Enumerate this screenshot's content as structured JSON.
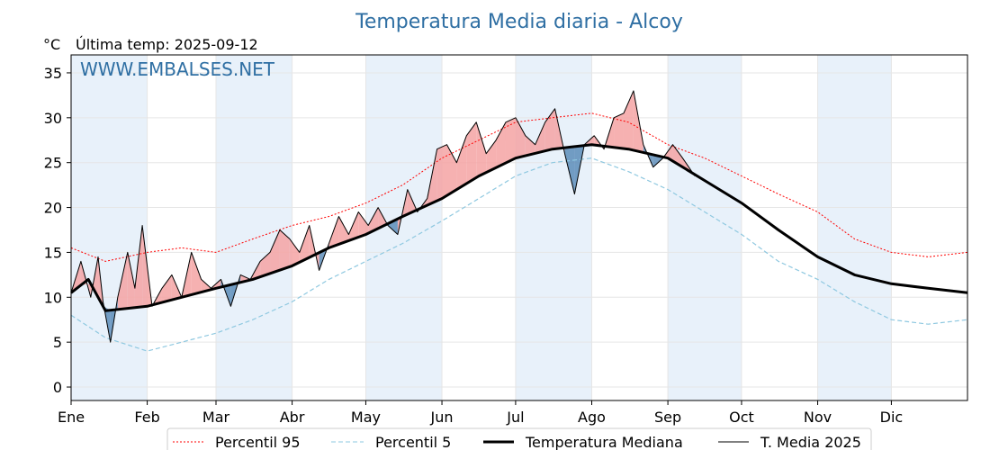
{
  "chart_data": {
    "type": "line",
    "title": "Temperatura Media diaria - Alcoy",
    "unit_label": "°C",
    "subtitle": "Última temp: 2025-09-12",
    "watermark": "WWW.EMBALSES.NET",
    "ylim": [
      -1.5,
      37
    ],
    "y_ticks": [
      0,
      5,
      10,
      15,
      20,
      25,
      30,
      35
    ],
    "month_ticks": [
      {
        "label": "Ene",
        "day": 1
      },
      {
        "label": "Feb",
        "day": 32
      },
      {
        "label": "Mar",
        "day": 60
      },
      {
        "label": "Abr",
        "day": 91
      },
      {
        "label": "May",
        "day": 121
      },
      {
        "label": "Jun",
        "day": 152
      },
      {
        "label": "Jul",
        "day": 182
      },
      {
        "label": "Ago",
        "day": 213
      },
      {
        "label": "Sep",
        "day": 244
      },
      {
        "label": "Oct",
        "day": 274
      },
      {
        "label": "Nov",
        "day": 305
      },
      {
        "label": "Dic",
        "day": 335
      }
    ],
    "x_range_days": [
      1,
      366
    ],
    "grid": true,
    "legend_position": "bottom",
    "colors": {
      "title": "#2f6fa3",
      "p95": "#ff0000",
      "p5": "#8ec8e0",
      "median": "#000000",
      "current": "#000000",
      "above_fill": "#f4a3a3",
      "below_fill": "#4a7fb0",
      "band": "#e8f1fa"
    },
    "series": [
      {
        "name": "Percentil 95",
        "key": "p95",
        "days": [
          1,
          15,
          32,
          46,
          60,
          75,
          91,
          106,
          121,
          136,
          152,
          167,
          182,
          197,
          213,
          228,
          244,
          259,
          274,
          289,
          305,
          320,
          335,
          350,
          366
        ],
        "values": [
          15.5,
          14.0,
          15.0,
          15.5,
          15.0,
          16.5,
          18.0,
          19.0,
          20.5,
          22.5,
          25.5,
          27.5,
          29.5,
          30.0,
          30.5,
          29.5,
          27.0,
          25.5,
          23.5,
          21.5,
          19.5,
          16.5,
          15.0,
          14.5,
          15.0
        ]
      },
      {
        "name": "Percentil 5",
        "key": "p5",
        "days": [
          1,
          15,
          32,
          46,
          60,
          75,
          91,
          106,
          121,
          136,
          152,
          167,
          182,
          197,
          213,
          228,
          244,
          259,
          274,
          289,
          305,
          320,
          335,
          350,
          366
        ],
        "values": [
          8.0,
          5.5,
          4.0,
          5.0,
          6.0,
          7.5,
          9.5,
          12.0,
          14.0,
          16.0,
          18.5,
          21.0,
          23.5,
          25.0,
          25.5,
          24.0,
          22.0,
          19.5,
          17.0,
          14.0,
          12.0,
          9.5,
          7.5,
          7.0,
          7.5
        ]
      },
      {
        "name": "Temperatura Mediana",
        "key": "median",
        "days": [
          1,
          8,
          15,
          32,
          46,
          60,
          75,
          91,
          106,
          121,
          136,
          152,
          167,
          182,
          197,
          213,
          228,
          244,
          259,
          274,
          289,
          305,
          320,
          335,
          350,
          366
        ],
        "values": [
          10.5,
          12.0,
          8.5,
          9.0,
          10.0,
          11.0,
          12.0,
          13.5,
          15.5,
          17.0,
          19.0,
          21.0,
          23.5,
          25.5,
          26.5,
          27.0,
          26.5,
          25.5,
          23.0,
          20.5,
          17.5,
          14.5,
          12.5,
          11.5,
          11.0,
          10.5
        ]
      },
      {
        "name": "T. Media 2025",
        "key": "current",
        "days": [
          1,
          5,
          9,
          12,
          14,
          17,
          20,
          24,
          27,
          30,
          34,
          38,
          42,
          46,
          50,
          54,
          58,
          62,
          66,
          70,
          74,
          78,
          82,
          86,
          90,
          94,
          98,
          102,
          106,
          110,
          114,
          118,
          122,
          126,
          130,
          134,
          138,
          142,
          146,
          150,
          154,
          158,
          162,
          166,
          170,
          174,
          178,
          182,
          186,
          190,
          194,
          198,
          202,
          206,
          210,
          214,
          218,
          222,
          226,
          230,
          234,
          238,
          242,
          246,
          250,
          255
        ],
        "values": [
          10.5,
          14.0,
          10.0,
          14.5,
          9.5,
          5.0,
          10.0,
          15.0,
          11.0,
          18.0,
          9.0,
          11.0,
          12.5,
          10.0,
          15.0,
          12.0,
          11.0,
          12.0,
          9.0,
          12.5,
          12.0,
          14.0,
          15.0,
          17.5,
          16.5,
          15.0,
          18.0,
          13.0,
          16.0,
          19.0,
          17.0,
          19.5,
          18.0,
          20.0,
          18.0,
          17.0,
          22.0,
          19.5,
          21.0,
          26.5,
          27.0,
          25.0,
          28.0,
          29.5,
          26.0,
          27.5,
          29.5,
          30.0,
          28.0,
          27.0,
          29.5,
          31.0,
          26.0,
          21.5,
          27.0,
          28.0,
          26.5,
          30.0,
          30.5,
          33.0,
          27.0,
          24.5,
          25.5,
          27.0,
          25.5,
          23.5
        ]
      }
    ]
  }
}
